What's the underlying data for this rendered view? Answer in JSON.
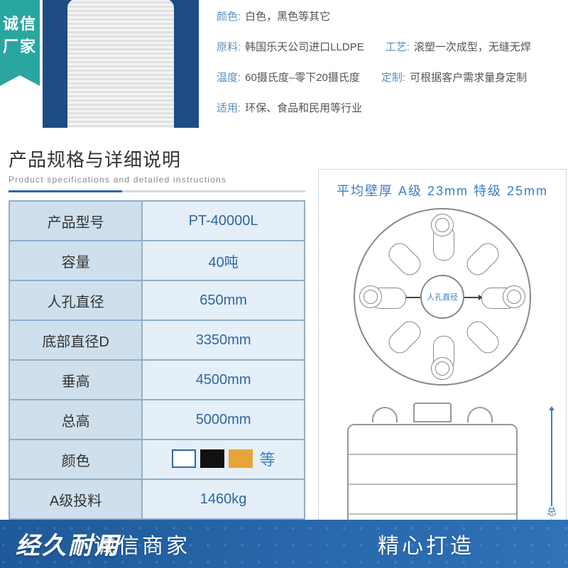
{
  "badge": "诚信厂家",
  "top_specs": [
    [
      {
        "k": "颜色:",
        "v": "白色，黑色等其它"
      }
    ],
    [
      {
        "k": "原料:",
        "v": "韩国乐天公司进口LLDPE"
      },
      {
        "k": "工艺:",
        "v": "滚塑一次成型，无缝无焊"
      }
    ],
    [
      {
        "k": "温度:",
        "v": "60摄氏度–零下20摄氏度"
      },
      {
        "k": "定制:",
        "v": "可根据客户需求量身定制"
      }
    ],
    [
      {
        "k": "适用:",
        "v": "环保、食品和民用等行业"
      }
    ]
  ],
  "section": {
    "zh": "产品规格与详细说明",
    "en": "Product specifications and detailed instructions"
  },
  "table": {
    "rows": [
      {
        "k": "产品型号",
        "v": "PT-40000L"
      },
      {
        "k": "容量",
        "v": "40吨"
      },
      {
        "k": "人孔直径",
        "v": "650mm"
      },
      {
        "k": "底部直径D",
        "v": "3350mm"
      },
      {
        "k": "垂高",
        "v": "4500mm"
      },
      {
        "k": "总高",
        "v": "5000mm"
      },
      {
        "k": "颜色",
        "swatches": true,
        "etc": "等"
      },
      {
        "k": "A级投料",
        "v": "1460kg"
      }
    ],
    "swatch_colors": [
      "#ffffff",
      "#111111",
      "#e6a53a"
    ]
  },
  "diagram": {
    "top_label": "平均壁厚   A级  23mm    特级  25mm",
    "inner_label": "人孔直径",
    "side_dim_label": "总高"
  },
  "left_slogan": "经久耐用",
  "bottom": [
    "诚信商家",
    "精心打造"
  ]
}
